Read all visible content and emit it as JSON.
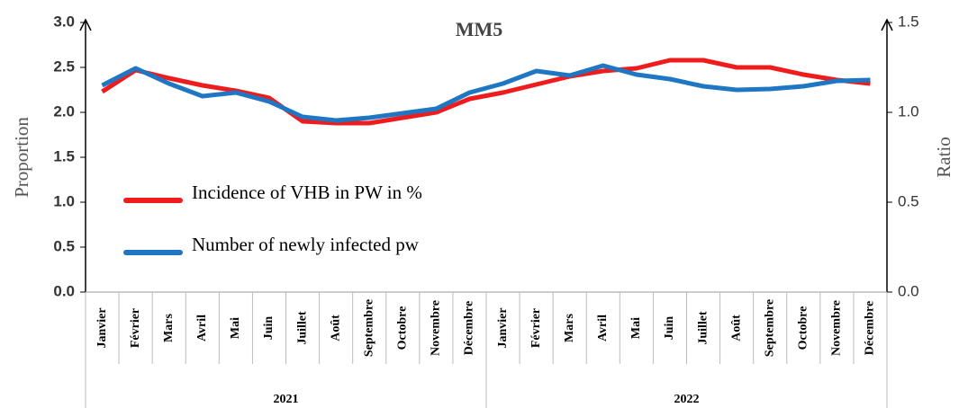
{
  "chart_data": {
    "type": "line",
    "title": "MM5",
    "ylabel": "Proportion",
    "y2label": "Ratio",
    "categories": [
      "Janvier",
      "Février",
      "Mars",
      "Avril",
      "Mai",
      "Juin",
      "Juillet",
      "Août",
      "Septembre",
      "Octobre",
      "Novembre",
      "Décembre",
      "Janvier",
      "Février",
      "Mars",
      "Avril",
      "Mai",
      "Juin",
      "Juillet",
      "Août",
      "Septembre",
      "Octobre",
      "Novembre",
      "Décembre"
    ],
    "x_groups": [
      "2021",
      "2022"
    ],
    "series": [
      {
        "name": "Incidence of VHB in PW in %",
        "color": "#ee1c1c",
        "axis": "y",
        "values": [
          2.23,
          2.47,
          2.38,
          2.3,
          2.24,
          2.16,
          1.9,
          1.88,
          1.88,
          1.94,
          2.0,
          2.15,
          2.22,
          2.31,
          2.4,
          2.46,
          2.49,
          2.58,
          2.58,
          2.5,
          2.5,
          2.42,
          2.36,
          2.32
        ]
      },
      {
        "name": "Number of newly infected pw",
        "color": "#1f77c4",
        "axis": "y2",
        "values": [
          1.15,
          1.245,
          1.16,
          1.09,
          1.11,
          1.06,
          0.975,
          0.955,
          0.97,
          0.995,
          1.02,
          1.11,
          1.16,
          1.23,
          1.205,
          1.26,
          1.21,
          1.185,
          1.145,
          1.125,
          1.13,
          1.145,
          1.175,
          1.18
        ]
      }
    ],
    "ylim": [
      0,
      3
    ],
    "yticks": [
      {
        "value": 0,
        "label": "0.0"
      },
      {
        "value": 0.5,
        "label": "0.5"
      },
      {
        "value": 1,
        "label": "1.0"
      },
      {
        "value": 1.5,
        "label": "1.5"
      },
      {
        "value": 2,
        "label": "2.0"
      },
      {
        "value": 2.5,
        "label": "2.5"
      },
      {
        "value": 3,
        "label": "3.0"
      }
    ],
    "y2lim": [
      0,
      1.5
    ],
    "y2ticks": [
      {
        "value": 0,
        "label": "0.0"
      },
      {
        "value": 0.5,
        "label": "0.5"
      },
      {
        "value": 1,
        "label": "1.0"
      },
      {
        "value": 1.5,
        "label": "1.5"
      }
    ],
    "grid": false,
    "legend_position": "left"
  }
}
